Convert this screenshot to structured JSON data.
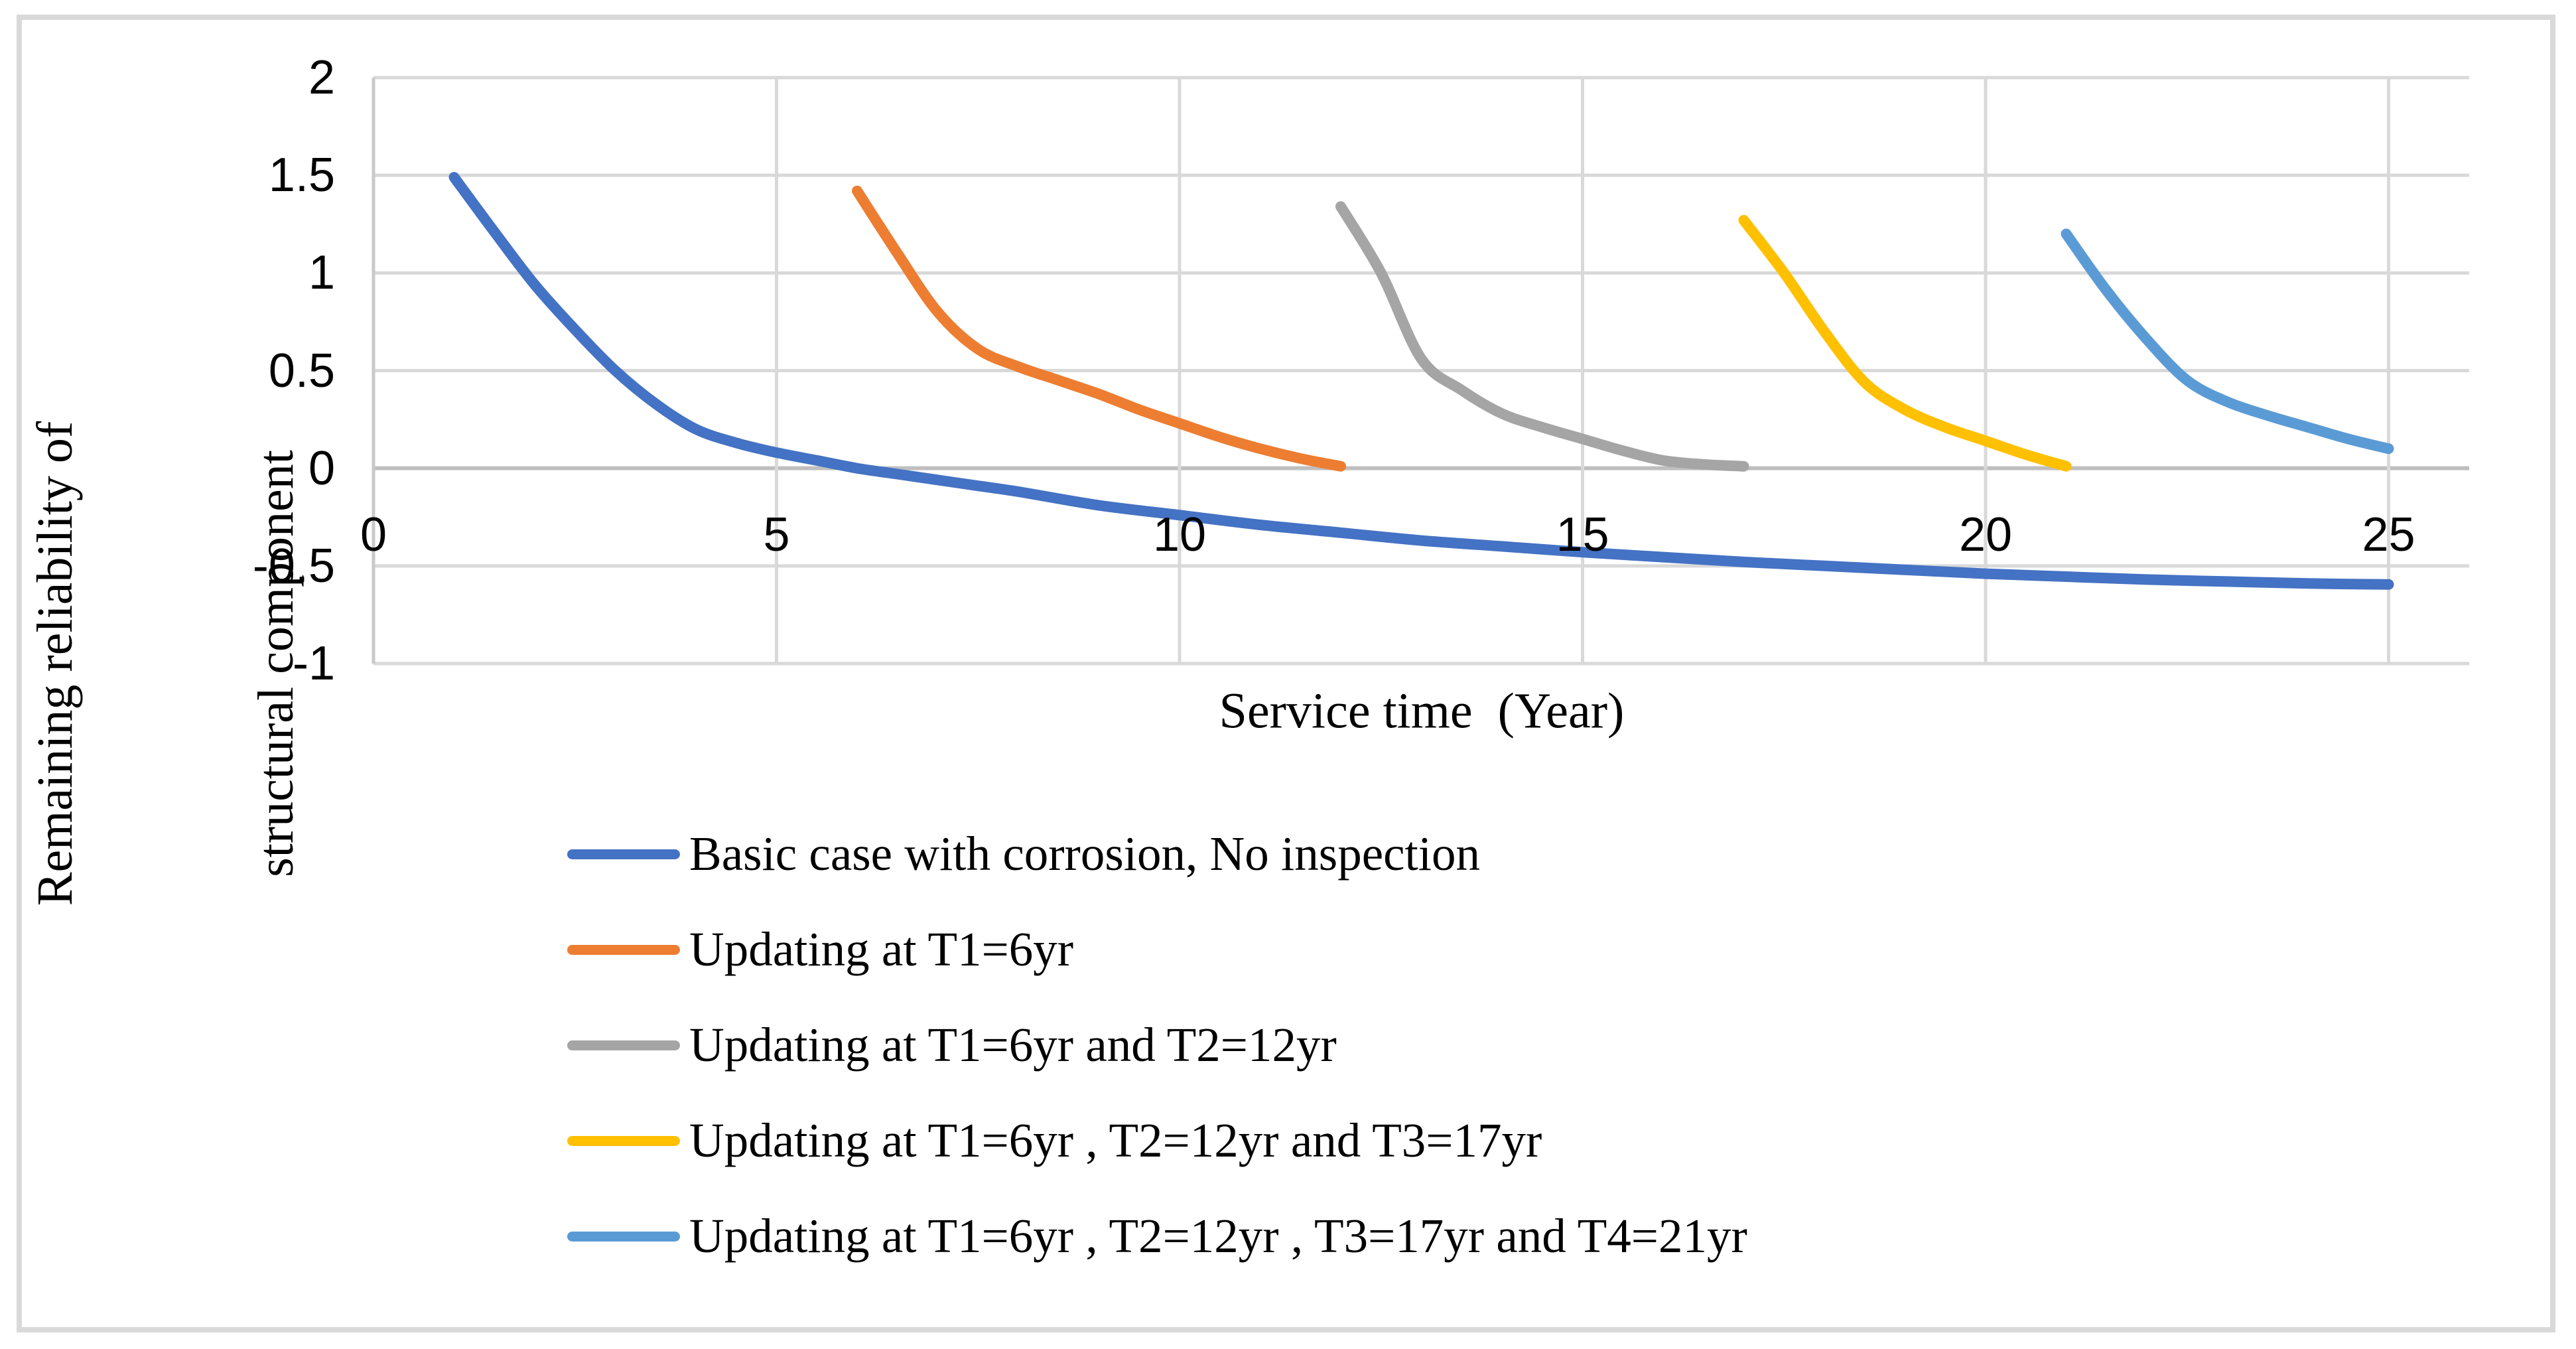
{
  "figure": {
    "background": "#FFFFFF",
    "border_color": "#D9D9D9",
    "gridline_color": "#D9D9D9",
    "axis_line_color": "#BFBFBF"
  },
  "chart_data": {
    "type": "line",
    "title": "",
    "xlabel": "Service time  (Year)",
    "ylabel_line1": "Remaining reliability of",
    "ylabel_line2": "structural component",
    "xlim": [
      0,
      26
    ],
    "ylim": [
      -1,
      2
    ],
    "xticks": [
      0,
      5,
      10,
      15,
      20,
      25
    ],
    "yticks": [
      2,
      1.5,
      1,
      0.5,
      0,
      -0.5,
      -1
    ],
    "grid": true,
    "legend_position": "bottom-left",
    "series": [
      {
        "name": "Basic case with corrosion, No inspection",
        "color": "#4472C4",
        "points": [
          [
            1,
            1.49
          ],
          [
            1.5,
            1.21
          ],
          [
            2,
            0.94
          ],
          [
            2.5,
            0.71
          ],
          [
            3,
            0.5
          ],
          [
            3.5,
            0.33
          ],
          [
            4,
            0.2
          ],
          [
            4.5,
            0.13
          ],
          [
            5,
            0.08
          ],
          [
            5.5,
            0.04
          ],
          [
            6,
            0.0
          ],
          [
            6.5,
            -0.03
          ],
          [
            7,
            -0.06
          ],
          [
            7.5,
            -0.09
          ],
          [
            8,
            -0.12
          ],
          [
            9,
            -0.19
          ],
          [
            10,
            -0.24
          ],
          [
            11,
            -0.29
          ],
          [
            12,
            -0.33
          ],
          [
            13,
            -0.37
          ],
          [
            14,
            -0.4
          ],
          [
            15,
            -0.43
          ],
          [
            16,
            -0.455
          ],
          [
            17,
            -0.48
          ],
          [
            18,
            -0.5
          ],
          [
            19,
            -0.52
          ],
          [
            20,
            -0.54
          ],
          [
            21,
            -0.555
          ],
          [
            22,
            -0.57
          ],
          [
            23,
            -0.58
          ],
          [
            24,
            -0.59
          ],
          [
            25,
            -0.595
          ]
        ]
      },
      {
        "name": "Updating at T1=6yr",
        "color": "#ED7D31",
        "points": [
          [
            6,
            1.42
          ],
          [
            6.5,
            1.1
          ],
          [
            7,
            0.8
          ],
          [
            7.5,
            0.61
          ],
          [
            8,
            0.52
          ],
          [
            8.5,
            0.45
          ],
          [
            9,
            0.38
          ],
          [
            9.5,
            0.3
          ],
          [
            10,
            0.23
          ],
          [
            10.5,
            0.16
          ],
          [
            11,
            0.1
          ],
          [
            11.5,
            0.05
          ],
          [
            12,
            0.01
          ]
        ]
      },
      {
        "name": "Updating at T1=6yr and T2=12yr",
        "color": "#A5A5A5",
        "points": [
          [
            12,
            1.34
          ],
          [
            12.5,
            1.0
          ],
          [
            13,
            0.56
          ],
          [
            13.5,
            0.4
          ],
          [
            14,
            0.28
          ],
          [
            14.5,
            0.21
          ],
          [
            15,
            0.15
          ],
          [
            15.5,
            0.09
          ],
          [
            16,
            0.04
          ],
          [
            16.5,
            0.02
          ],
          [
            17,
            0.01
          ]
        ]
      },
      {
        "name": "Updating at T1=6yr , T2=12yr and T3=17yr",
        "color": "#FFC000",
        "points": [
          [
            17,
            1.27
          ],
          [
            17.5,
            1.0
          ],
          [
            18,
            0.7
          ],
          [
            18.5,
            0.44
          ],
          [
            19,
            0.3
          ],
          [
            19.5,
            0.21
          ],
          [
            20,
            0.14
          ],
          [
            20.5,
            0.07
          ],
          [
            21,
            0.01
          ]
        ]
      },
      {
        "name": "Updating at T1=6yr , T2=12yr , T3=17yr and T4=21yr",
        "color": "#5B9BD5",
        "points": [
          [
            21,
            1.2
          ],
          [
            21.5,
            0.91
          ],
          [
            22,
            0.66
          ],
          [
            22.5,
            0.45
          ],
          [
            23,
            0.34
          ],
          [
            23.5,
            0.27
          ],
          [
            24,
            0.21
          ],
          [
            24.5,
            0.15
          ],
          [
            25,
            0.1
          ]
        ]
      }
    ]
  }
}
